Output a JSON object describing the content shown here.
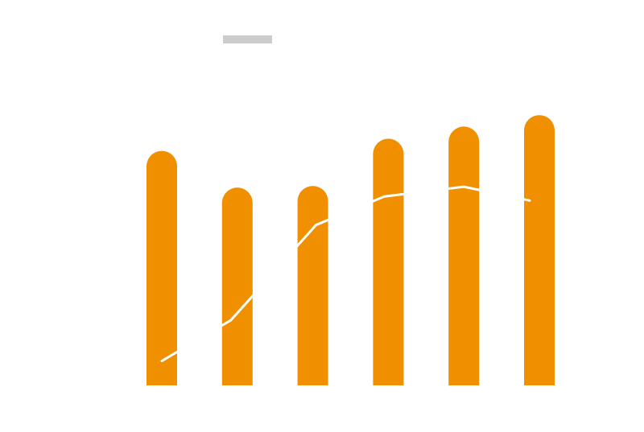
{
  "chart_data": {
    "type": "bar",
    "categories": [
      "",
      "",
      "",
      "",
      "",
      ""
    ],
    "series": [
      {
        "type": "bar",
        "values": [
          288,
          243,
          245,
          303,
          318,
          332
        ],
        "color": "#f09000"
      },
      {
        "type": "line",
        "values": [
          30,
          80,
          197,
          232,
          244,
          227
        ],
        "color": "#ffffff"
      }
    ],
    "legend": {
      "placement": "top-left",
      "swatch_color": "#cccccc"
    },
    "ylim": [
      0,
      340
    ],
    "grid": false,
    "title": "",
    "xlabel": "",
    "ylabel": ""
  }
}
